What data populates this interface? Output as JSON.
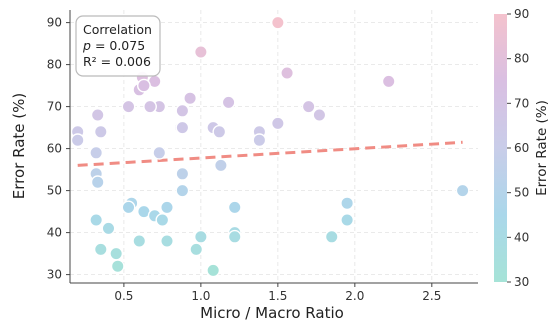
{
  "chart_data": {
    "type": "scatter",
    "xlabel": "Micro / Macro Ratio",
    "ylabel": "Error Rate (%)",
    "xlim": [
      0.15,
      2.8
    ],
    "ylim": [
      28,
      93
    ],
    "xticks": [
      "0.5",
      "1.0",
      "1.5",
      "2.0",
      "2.5"
    ],
    "yticks": [
      "30",
      "40",
      "50",
      "60",
      "70",
      "80",
      "90"
    ],
    "grid": true,
    "colorbar": {
      "label": "Error Rate (%)",
      "range": [
        30,
        90
      ],
      "ticks": [
        "30",
        "40",
        "50",
        "60",
        "70",
        "80",
        "90"
      ],
      "colors": [
        "#a6e3d7",
        "#aad7ea",
        "#c9cde9",
        "#d9bfe2",
        "#f4c2cd"
      ]
    },
    "annotation": {
      "title": "Correlation",
      "p_label": "p",
      "p_value": "= 0.075",
      "r2_text": "R² = 0.006"
    },
    "trendline": {
      "x": [
        0.2,
        2.7
      ],
      "y": [
        56.0,
        61.5
      ],
      "color": "#f08c84",
      "style": "dashed"
    },
    "points": [
      [
        1.5,
        90
      ],
      [
        1.0,
        83
      ],
      [
        1.56,
        78
      ],
      [
        2.22,
        76
      ],
      [
        0.62,
        77
      ],
      [
        0.7,
        76
      ],
      [
        0.6,
        74
      ],
      [
        0.63,
        75
      ],
      [
        0.93,
        72
      ],
      [
        1.18,
        71
      ],
      [
        0.53,
        70
      ],
      [
        0.73,
        70
      ],
      [
        0.67,
        70
      ],
      [
        1.7,
        70
      ],
      [
        0.88,
        69
      ],
      [
        1.77,
        68
      ],
      [
        0.33,
        68
      ],
      [
        1.5,
        66
      ],
      [
        0.87,
        65
      ],
      [
        1.08,
        65
      ],
      [
        0.88,
        65
      ],
      [
        1.12,
        64
      ],
      [
        1.38,
        64
      ],
      [
        0.2,
        64
      ],
      [
        0.35,
        64
      ],
      [
        0.2,
        62
      ],
      [
        1.38,
        62
      ],
      [
        0.73,
        59
      ],
      [
        0.32,
        59
      ],
      [
        1.13,
        56
      ],
      [
        0.32,
        54
      ],
      [
        0.88,
        54
      ],
      [
        0.33,
        52
      ],
      [
        0.88,
        50
      ],
      [
        2.7,
        50
      ],
      [
        0.55,
        47
      ],
      [
        1.95,
        47
      ],
      [
        0.53,
        46
      ],
      [
        0.78,
        46
      ],
      [
        1.22,
        46
      ],
      [
        0.63,
        45
      ],
      [
        0.7,
        44
      ],
      [
        0.75,
        43
      ],
      [
        0.32,
        43
      ],
      [
        1.95,
        43
      ],
      [
        0.4,
        41
      ],
      [
        1.22,
        40
      ],
      [
        1.22,
        39
      ],
      [
        0.6,
        38
      ],
      [
        0.78,
        38
      ],
      [
        1.0,
        39
      ],
      [
        1.85,
        39
      ],
      [
        0.35,
        36
      ],
      [
        0.97,
        36
      ],
      [
        0.45,
        35
      ],
      [
        0.46,
        32
      ],
      [
        1.08,
        31
      ]
    ]
  }
}
